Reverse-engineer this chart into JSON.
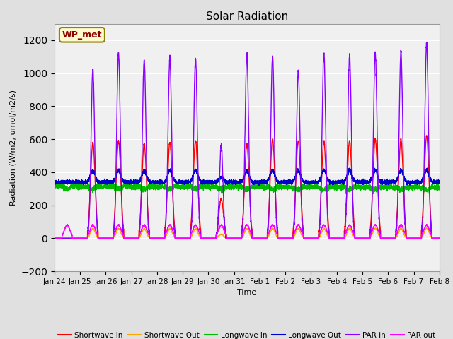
{
  "title": "Solar Radiation",
  "ylabel": "Radiation (W/m2, umol/m2/s)",
  "xlabel": "Time",
  "ylim": [
    -200,
    1300
  ],
  "yticks": [
    -200,
    0,
    200,
    400,
    600,
    800,
    1000,
    1200
  ],
  "xlim": [
    0,
    15
  ],
  "xtick_labels": [
    "Jan 24",
    "Jan 25",
    "Jan 26",
    "Jan 27",
    "Jan 28",
    "Jan 29",
    "Jan 30",
    "Jan 31",
    "Feb 1",
    "Feb 2",
    "Feb 3",
    "Feb 4",
    "Feb 5",
    "Feb 6",
    "Feb 7",
    "Feb 8"
  ],
  "annotation_text": "WP_met",
  "series": {
    "shortwave_in": {
      "color": "#FF0000",
      "label": "Shortwave In",
      "lw": 1.0
    },
    "shortwave_out": {
      "color": "#FFA500",
      "label": "Shortwave Out",
      "lw": 1.0
    },
    "longwave_in": {
      "color": "#00BB00",
      "label": "Longwave In",
      "lw": 1.0
    },
    "longwave_out": {
      "color": "#0000CC",
      "label": "Longwave Out",
      "lw": 1.0
    },
    "par_in": {
      "color": "#8B00FF",
      "label": "PAR in",
      "lw": 1.0
    },
    "par_out": {
      "color": "#FF00FF",
      "label": "PAR out",
      "lw": 1.0
    }
  },
  "bg_color": "#E0E0E0",
  "plot_bg": "#F0F0F0",
  "grid_color": "#FFFFFF",
  "num_days": 15,
  "points_per_day": 288
}
